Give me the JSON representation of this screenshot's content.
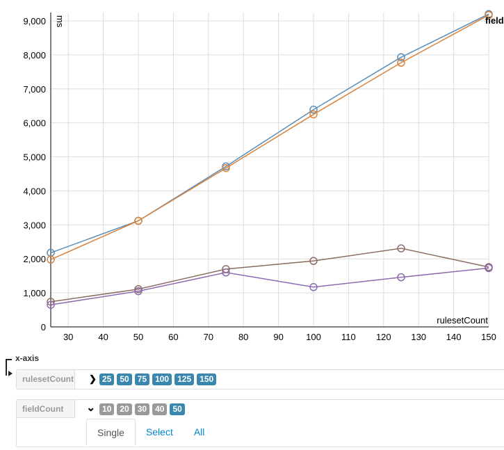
{
  "chart_data": {
    "type": "line",
    "ylabel": "ms",
    "xlabel": "rulesetCount",
    "legend_title": "fieldCount",
    "x": [
      25,
      50,
      75,
      100,
      125,
      150
    ],
    "xlim": [
      25,
      150
    ],
    "ylim": [
      0,
      9200
    ],
    "xticks": [
      30,
      40,
      50,
      60,
      70,
      80,
      90,
      100,
      110,
      120,
      130,
      140,
      150
    ],
    "yticks": [
      "0",
      "1,000",
      "2,000",
      "3,000",
      "4,000",
      "5,000",
      "6,000",
      "7,000",
      "8,000",
      "9,000"
    ],
    "grid": true,
    "series": [
      {
        "color": "#5b8db8",
        "values": [
          2180,
          3120,
          4720,
          6390,
          7930,
          9200
        ]
      },
      {
        "color": "#d9823b",
        "values": [
          1980,
          3120,
          4670,
          6250,
          7770,
          9170
        ]
      },
      {
        "color": "#8c6d62",
        "values": [
          740,
          1110,
          1700,
          1940,
          2310,
          1760
        ]
      },
      {
        "color": "#8e6bb0",
        "values": [
          650,
          1050,
          1600,
          1170,
          1460,
          1730
        ]
      }
    ]
  },
  "controls": {
    "axis_label": "x-axis",
    "rows": [
      {
        "label": "rulesetCount",
        "expanded": false,
        "values": [
          {
            "v": "25",
            "on": true
          },
          {
            "v": "50",
            "on": true
          },
          {
            "v": "75",
            "on": true
          },
          {
            "v": "100",
            "on": true
          },
          {
            "v": "125",
            "on": true
          },
          {
            "v": "150",
            "on": true
          }
        ]
      },
      {
        "label": "fieldCount",
        "expanded": true,
        "values": [
          {
            "v": "10",
            "on": false
          },
          {
            "v": "20",
            "on": false
          },
          {
            "v": "30",
            "on": false
          },
          {
            "v": "40",
            "on": false
          },
          {
            "v": "50",
            "on": true
          }
        ],
        "tabs": [
          {
            "label": "Single",
            "active": true
          },
          {
            "label": "Select",
            "active": false
          },
          {
            "label": "All",
            "active": false
          }
        ]
      }
    ]
  },
  "colors": {
    "accent": "#3a87ad",
    "link": "#0088cc"
  }
}
